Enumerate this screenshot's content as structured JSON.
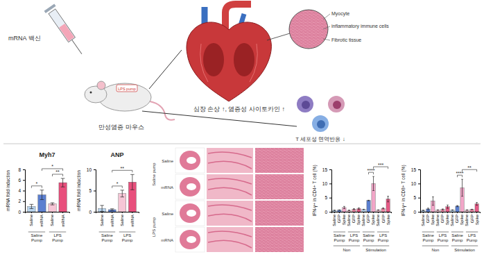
{
  "diagram": {
    "vaccine": "mRNA 백신",
    "pump": "LPS pump",
    "mouse": "만성염증 마우스",
    "callouts": [
      "Myocyte",
      "inflammatory immune cells",
      "Fibrotic tissue"
    ],
    "heart_effect": "심장 손상 ↑, 염증성 사이토카인 ↑",
    "tcell_effect": "T 세포성 면역반응 ↓"
  },
  "histology": {
    "groups": [
      {
        "label": "Saline pump",
        "rows": [
          "Saline",
          "mRNA"
        ]
      },
      {
        "label": "LPS pump",
        "rows": [
          "Saline",
          "mRNA"
        ]
      }
    ]
  },
  "chart_data": [
    {
      "type": "bar",
      "title": "Myh7",
      "ylabel": "mRNA fold induction",
      "categories": [
        "Saline",
        "mRNA",
        "Saline",
        "mRNA"
      ],
      "values": [
        1.0,
        3.2,
        1.5,
        5.5
      ],
      "errors": [
        0.4,
        0.9,
        0.2,
        0.8
      ],
      "colors": [
        "#b8d4ee",
        "#5b7fd0",
        "#f6c6d6",
        "#e84f7c"
      ],
      "ylim": [
        0,
        8
      ],
      "yticks": [
        0,
        2,
        4,
        6,
        8
      ],
      "groups": [
        {
          "label": "Saline Pump",
          "start": 0,
          "end": 1
        },
        {
          "label": "LPS Pump",
          "start": 2,
          "end": 3
        }
      ],
      "significance": [
        {
          "from": 0,
          "to": 1,
          "label": "*"
        },
        {
          "from": 2,
          "to": 3,
          "label": "**"
        },
        {
          "from": 1,
          "to": 3,
          "label": "*"
        }
      ]
    },
    {
      "type": "bar",
      "title": "ANP",
      "ylabel": "mRNA fold induction",
      "categories": [
        "Saline",
        "mRNA",
        "Saline",
        "mRNA"
      ],
      "values": [
        0.8,
        0.5,
        4.3,
        7.0
      ],
      "errors": [
        0.7,
        0.2,
        0.8,
        1.8
      ],
      "colors": [
        "#b8d4ee",
        "#5b7fd0",
        "#f6c6d6",
        "#e84f7c"
      ],
      "ylim": [
        0,
        10
      ],
      "yticks": [
        0,
        5,
        10
      ],
      "groups": [
        {
          "label": "Saline Pump",
          "start": 0,
          "end": 1
        },
        {
          "label": "LPS Pump",
          "start": 2,
          "end": 3
        }
      ],
      "significance": [
        {
          "from": 1,
          "to": 2,
          "label": "*"
        },
        {
          "from": 1,
          "to": 3,
          "label": "**"
        }
      ]
    },
    {
      "type": "bar",
      "ylabel": "IFN-γ+ in CD4+ T cell (%)",
      "categories": [
        "Saline",
        "GFP",
        "Spike",
        "Saline",
        "GFP",
        "Spike",
        "Saline",
        "GFP",
        "Spike",
        "Saline",
        "GFP",
        "Spike"
      ],
      "values": [
        0.5,
        0.6,
        1.5,
        0.5,
        0.9,
        1.1,
        0.8,
        4.0,
        10.0,
        0.6,
        1.2,
        4.5
      ],
      "errors": [
        0.1,
        0.1,
        0.4,
        0.1,
        0.2,
        0.3,
        0.1,
        0.1,
        2.5,
        0.1,
        0.2,
        1.0
      ],
      "colors": [
        "#b8d4ee",
        "#5b7fd0",
        "#f2a6c8",
        "#f6c6d6",
        "#f08aa8",
        "#e65a86",
        "#b8d4ee",
        "#5b7fd0",
        "#f2a6c8",
        "#f6c6d6",
        "#f08aa8",
        "#e65a86"
      ],
      "ylim": [
        0,
        15
      ],
      "yticks": [
        0,
        5,
        10,
        15
      ],
      "groups": [
        {
          "label": "Saline Pump",
          "start": 0,
          "end": 2
        },
        {
          "label": "LPS Pump",
          "start": 3,
          "end": 5
        },
        {
          "label": "Saline Pump",
          "start": 6,
          "end": 8
        },
        {
          "label": "LPS Pump",
          "start": 9,
          "end": 11
        }
      ],
      "supergroups": [
        {
          "label": "Non",
          "start": 0,
          "end": 5
        },
        {
          "label": "Stimulation",
          "start": 6,
          "end": 11
        }
      ],
      "significance": [
        {
          "from": 7,
          "to": 8,
          "label": "****"
        },
        {
          "from": 8,
          "to": 11,
          "label": "***"
        }
      ]
    },
    {
      "type": "bar",
      "ylabel": "IFN-γ+ in CD8+ T cell (%)",
      "categories": [
        "Saline",
        "GFP",
        "Spike",
        "Saline",
        "GFP",
        "Spike",
        "Saline",
        "GFP",
        "Spike",
        "Saline",
        "GFP",
        "Spike"
      ],
      "values": [
        0.5,
        1.0,
        3.8,
        0.6,
        0.8,
        1.8,
        0.6,
        2.0,
        8.5,
        0.6,
        0.8,
        2.8
      ],
      "errors": [
        0.1,
        0.3,
        1.5,
        0.1,
        0.2,
        0.6,
        0.1,
        0.2,
        3.0,
        0.1,
        0.1,
        0.5
      ],
      "colors": [
        "#b8d4ee",
        "#5b7fd0",
        "#f2a6c8",
        "#f6c6d6",
        "#f08aa8",
        "#e65a86",
        "#b8d4ee",
        "#5b7fd0",
        "#f2a6c8",
        "#f6c6d6",
        "#f08aa8",
        "#e65a86"
      ],
      "ylim": [
        0,
        15
      ],
      "yticks": [
        0,
        5,
        10,
        15
      ],
      "groups": [
        {
          "label": "Saline Pump",
          "start": 0,
          "end": 2
        },
        {
          "label": "LPS Pump",
          "start": 3,
          "end": 5
        },
        {
          "label": "Saline Pump",
          "start": 6,
          "end": 8
        },
        {
          "label": "LPS Pump",
          "start": 9,
          "end": 11
        }
      ],
      "supergroups": [
        {
          "label": "Non",
          "start": 0,
          "end": 5
        },
        {
          "label": "Stimulation",
          "start": 6,
          "end": 11
        }
      ],
      "significance": [
        {
          "from": 7,
          "to": 8,
          "label": "****"
        },
        {
          "from": 8,
          "to": 11,
          "label": "**"
        }
      ]
    }
  ]
}
